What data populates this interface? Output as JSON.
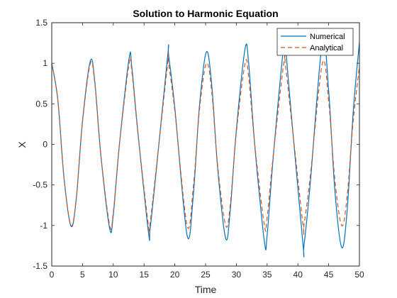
{
  "chart_data": {
    "type": "line",
    "title": "Solution to Harmonic Equation",
    "xlabel": "Time",
    "ylabel": "X",
    "xlim": [
      0,
      50
    ],
    "ylim": [
      -1.5,
      1.5
    ],
    "xticks": [
      "0",
      "5",
      "10",
      "15",
      "20",
      "25",
      "30",
      "35",
      "40",
      "45",
      "50"
    ],
    "yticks": [
      "-1.5",
      "-1",
      "-0.5",
      "0",
      "0.5",
      "1",
      "1.5"
    ],
    "grid": false,
    "legend_position": "top-right",
    "series": [
      {
        "name": "Numerical",
        "color": "#0072BD",
        "style": "solid",
        "x": [
          0,
          1,
          2,
          3.14,
          4,
          5,
          6.28,
          7,
          8,
          9.42,
          10,
          11,
          12.57,
          13,
          14,
          15.71,
          16,
          17,
          18.85,
          19,
          20,
          21.99,
          23,
          24,
          25.13,
          26,
          27,
          28.27,
          29,
          30,
          31.42,
          32,
          33,
          34.56,
          35,
          36,
          37.7,
          38,
          39,
          40.84,
          41,
          42,
          43.98,
          45,
          46,
          47.12,
          48,
          49,
          50
        ],
        "y": [
          1.0,
          0.54,
          -0.42,
          -1.01,
          -0.66,
          0.29,
          1.03,
          0.77,
          -0.15,
          -1.04,
          -0.87,
          0.0,
          1.06,
          0.96,
          0.15,
          -1.08,
          -1.03,
          -0.31,
          1.1,
          1.09,
          0.45,
          -1.12,
          -0.63,
          0.47,
          1.14,
          0.73,
          -0.33,
          -1.16,
          -0.82,
          0.18,
          1.18,
          1.0,
          -0.02,
          -1.2,
          -1.12,
          -0.15,
          1.22,
          1.18,
          0.31,
          -1.24,
          -1.24,
          -0.49,
          1.26,
          0.66,
          -0.56,
          -1.27,
          -0.82,
          0.41,
          1.26
        ]
      },
      {
        "name": "Analytical",
        "color": "#D95319",
        "style": "dashed",
        "x": [
          0,
          1,
          2,
          3.14,
          4,
          5,
          6.28,
          7,
          8,
          9.42,
          10,
          11,
          12.57,
          13,
          14,
          15.71,
          16,
          17,
          18.85,
          19,
          20,
          21.99,
          23,
          24,
          25.13,
          26,
          27,
          28.27,
          29,
          30,
          31.42,
          32,
          33,
          34.56,
          35,
          36,
          37.7,
          38,
          39,
          40.84,
          41,
          42,
          43.98,
          45,
          46,
          47.12,
          48,
          49,
          50
        ],
        "y": [
          1.0,
          0.54,
          -0.42,
          -1.0,
          -0.65,
          0.28,
          1.0,
          0.75,
          -0.15,
          -1.0,
          -0.84,
          0.0,
          1.0,
          0.91,
          0.14,
          -1.0,
          -0.96,
          -0.28,
          1.0,
          0.99,
          0.41,
          -1.0,
          -0.53,
          0.42,
          1.0,
          0.65,
          -0.29,
          -1.0,
          -0.75,
          0.15,
          1.0,
          0.83,
          -0.01,
          -1.0,
          -0.9,
          -0.13,
          1.0,
          0.96,
          0.27,
          -1.0,
          -0.99,
          -0.4,
          1.0,
          0.53,
          -0.43,
          -1.0,
          -0.64,
          0.3,
          0.96
        ]
      }
    ]
  }
}
